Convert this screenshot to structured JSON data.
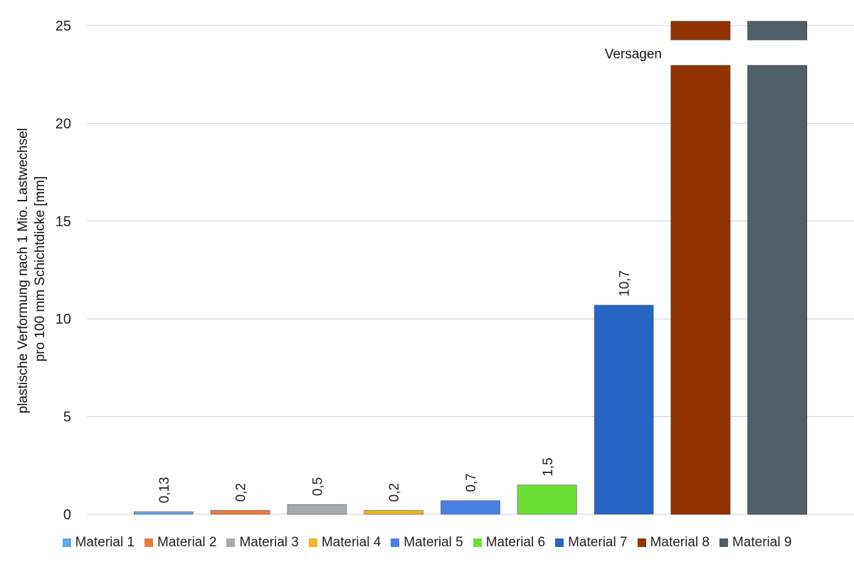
{
  "chart_data": {
    "type": "bar",
    "ylabel_lines": [
      "plastische Verformung nach 1 Mio. Lastwechsel",
      "pro 100 mm Schichtdicke [mm]"
    ],
    "xlabel": "",
    "ylim": [
      0,
      25
    ],
    "yticks": [
      "0",
      "5",
      "10",
      "15",
      "20",
      "25"
    ],
    "ytick_values": [
      0,
      5,
      10,
      15,
      20,
      25
    ],
    "grid": true,
    "legend_position": "bottom",
    "annotation": "Versagen",
    "series": [
      {
        "name": "Material 1",
        "value": 0.13,
        "label": "0,13",
        "color": "#5fa8e8"
      },
      {
        "name": "Material 2",
        "value": 0.2,
        "label": "0,2",
        "color": "#ed7a3a"
      },
      {
        "name": "Material 3",
        "value": 0.5,
        "label": "0,5",
        "color": "#a5aaae"
      },
      {
        "name": "Material 4",
        "value": 0.2,
        "label": "0,2",
        "color": "#f2b51d"
      },
      {
        "name": "Material 5",
        "value": 0.7,
        "label": "0,7",
        "color": "#4a7fe6"
      },
      {
        "name": "Material 6",
        "value": 1.5,
        "label": "1,5",
        "color": "#6ae034"
      },
      {
        "name": "Material 7",
        "value": 10.7,
        "label": "10,7",
        "color": "#2565c4"
      },
      {
        "name": "Material 8",
        "value": null,
        "label": "",
        "color": "#943400",
        "failed": true
      },
      {
        "name": "Material 9",
        "value": null,
        "label": "",
        "color": "#516066",
        "failed": true
      }
    ]
  }
}
